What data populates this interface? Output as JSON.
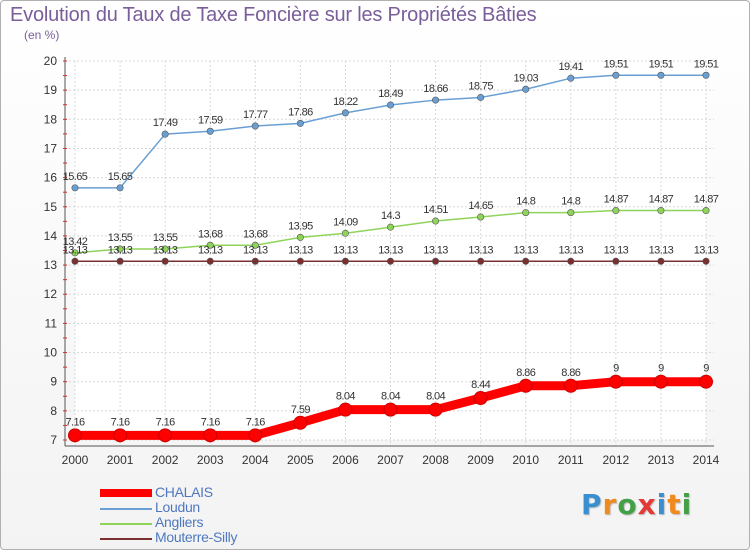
{
  "title": "Evolution du Taux de Taxe Foncière sur les Propriétés Bâties",
  "subtitle": "(en %)",
  "logo": {
    "letters": [
      "P",
      "r",
      "o",
      "x",
      "i",
      "t",
      "i"
    ],
    "colors": [
      "#3a8fd0",
      "#f08a1c",
      "#43a047",
      "#e53935",
      "#3a8fd0",
      "#f08a1c",
      "#43a047"
    ]
  },
  "chart_data": {
    "type": "line",
    "title": "Evolution du Taux de Taxe Foncière sur les Propriétés Bâties",
    "ylabel": "(en %)",
    "x": [
      "2000",
      "2001",
      "2002",
      "2003",
      "2004",
      "2005",
      "2006",
      "2007",
      "2008",
      "2009",
      "2010",
      "2011",
      "2012",
      "2013",
      "2014"
    ],
    "ylim": [
      7,
      20
    ],
    "yticks": [
      "7",
      "8",
      "9",
      "10",
      "11",
      "12",
      "13",
      "14",
      "15",
      "16",
      "17",
      "18",
      "19",
      "20"
    ],
    "grid": true,
    "legend_position": "bottom-left",
    "series": [
      {
        "name": "CHALAIS",
        "color": "#ff0000",
        "style": "thick",
        "values": [
          7.16,
          7.16,
          7.16,
          7.16,
          7.16,
          7.59,
          8.04,
          8.04,
          8.04,
          8.44,
          8.86,
          8.86,
          9,
          9,
          9
        ],
        "labels": [
          "7.16",
          "7.16",
          "7.16",
          "7.16",
          "7.16",
          "7.59",
          "8.04",
          "8.04",
          "8.04",
          "8.44",
          "8.86",
          "8.86",
          "9",
          "9",
          "9"
        ]
      },
      {
        "name": "Loudun",
        "color": "#6a9fd4",
        "style": "thin",
        "values": [
          15.65,
          15.65,
          17.49,
          17.59,
          17.77,
          17.86,
          18.22,
          18.49,
          18.66,
          18.75,
          19.03,
          19.41,
          19.51,
          19.51,
          19.51
        ],
        "labels": [
          "15.65",
          "15.65",
          "17.49",
          "17.59",
          "17.77",
          "17.86",
          "18.22",
          "18.49",
          "18.66",
          "18.75",
          "19.03",
          "19.41",
          "19.51",
          "19.51",
          "19.51"
        ]
      },
      {
        "name": "Angliers",
        "color": "#8fd45a",
        "style": "thin",
        "values": [
          13.42,
          13.55,
          13.55,
          13.68,
          13.68,
          13.95,
          14.09,
          14.3,
          14.51,
          14.65,
          14.8,
          14.8,
          14.87,
          14.87,
          14.87
        ],
        "labels": [
          "13.42",
          "13.55",
          "13.55",
          "13.68",
          "13.68",
          "13.95",
          "14.09",
          "14.3",
          "14.51",
          "14.65",
          "14.8",
          "14.8",
          "14.87",
          "14.87",
          "14.87"
        ]
      },
      {
        "name": "Mouterre-Silly",
        "color": "#7a3030",
        "style": "thin",
        "values": [
          13.13,
          13.13,
          13.13,
          13.13,
          13.13,
          13.13,
          13.13,
          13.13,
          13.13,
          13.13,
          13.13,
          13.13,
          13.13,
          13.13,
          13.13
        ],
        "labels": [
          "13.13",
          "13.13",
          "13.13",
          "13.13",
          "13.13",
          "13.13",
          "13.13",
          "13.13",
          "13.13",
          "13.13",
          "13.13",
          "13.13",
          "13.13",
          "13.13",
          "13.13"
        ]
      }
    ]
  }
}
